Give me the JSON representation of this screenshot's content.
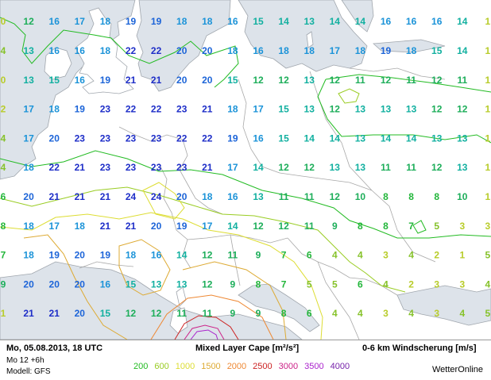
{
  "footer": {
    "datetime": "Mo, 05.08.2013, 18 UTC",
    "run": "Mo 12 +6h",
    "model": "Modell: GFS",
    "cape_title": "Mixed Layer Cape [m²/s²]",
    "shear_title": "0-6 km Windscherung [m/s]",
    "brand": "WetterOnline",
    "legend": [
      {
        "label": "200",
        "color": "#22bb22"
      },
      {
        "label": "600",
        "color": "#99cc22"
      },
      {
        "label": "1000",
        "color": "#dddd33"
      },
      {
        "label": "1500",
        "color": "#ddaa33"
      },
      {
        "label": "2000",
        "color": "#ee8833"
      },
      {
        "label": "2500",
        "color": "#cc2222"
      },
      {
        "label": "3000",
        "color": "#cc2288"
      },
      {
        "label": "3500",
        "color": "#aa22cc"
      },
      {
        "label": "4000",
        "color": "#7722aa"
      }
    ]
  },
  "map": {
    "value_colors": [
      {
        "min": 21,
        "color": "#1e2ec8"
      },
      {
        "min": 19,
        "color": "#1c64d8"
      },
      {
        "min": 16,
        "color": "#1b93d8"
      },
      {
        "min": 13,
        "color": "#12b0a0"
      },
      {
        "min": 9,
        "color": "#1dae5a"
      },
      {
        "min": 6,
        "color": "#22b63a"
      },
      {
        "min": 4,
        "color": "#86c22a"
      },
      {
        "min": 0,
        "color": "#b8cc2a"
      }
    ],
    "columns": [
      "0",
      "12",
      "16",
      "17",
      "18",
      "19",
      "19",
      "18",
      "18",
      "16",
      "15",
      "14",
      "13",
      "14",
      "14",
      "16",
      "16",
      "16",
      "14",
      "1"
    ],
    "rows": [
      [
        "0",
        "12",
        "16",
        "17",
        "18",
        "19",
        "19",
        "18",
        "18",
        "16",
        "15",
        "14",
        "13",
        "14",
        "14",
        "16",
        "16",
        "16",
        "14",
        "1"
      ],
      [
        "4",
        "13",
        "16",
        "16",
        "18",
        "22",
        "22",
        "20",
        "20",
        "18",
        "16",
        "18",
        "18",
        "17",
        "18",
        "19",
        "18",
        "15",
        "14",
        "1"
      ],
      [
        "0",
        "13",
        "15",
        "16",
        "19",
        "21",
        "21",
        "20",
        "20",
        "15",
        "12",
        "12",
        "13",
        "12",
        "11",
        "12",
        "11",
        "12",
        "11",
        "1"
      ],
      [
        "2",
        "17",
        "18",
        "19",
        "23",
        "22",
        "22",
        "23",
        "21",
        "18",
        "17",
        "15",
        "13",
        "12",
        "13",
        "13",
        "13",
        "12",
        "12",
        "1"
      ],
      [
        "4",
        "17",
        "20",
        "23",
        "23",
        "23",
        "23",
        "22",
        "22",
        "19",
        "16",
        "15",
        "14",
        "14",
        "13",
        "14",
        "14",
        "13",
        "13",
        "1"
      ],
      [
        "4",
        "18",
        "22",
        "21",
        "23",
        "23",
        "23",
        "23",
        "21",
        "17",
        "14",
        "12",
        "12",
        "13",
        "13",
        "11",
        "11",
        "12",
        "13",
        "1"
      ],
      [
        "6",
        "20",
        "21",
        "21",
        "21",
        "24",
        "24",
        "20",
        "18",
        "16",
        "13",
        "11",
        "11",
        "12",
        "10",
        "8",
        "8",
        "8",
        "10",
        "1"
      ],
      [
        "8",
        "18",
        "17",
        "18",
        "21",
        "21",
        "20",
        "19",
        "17",
        "14",
        "12",
        "12",
        "11",
        "9",
        "8",
        "8",
        "7",
        "5",
        "3",
        "3"
      ],
      [
        "7",
        "18",
        "19",
        "20",
        "19",
        "18",
        "16",
        "14",
        "12",
        "11",
        "9",
        "7",
        "6",
        "4",
        "4",
        "3",
        "4",
        "2",
        "1",
        "5"
      ],
      [
        "9",
        "20",
        "20",
        "20",
        "16",
        "15",
        "13",
        "13",
        "12",
        "9",
        "8",
        "7",
        "5",
        "5",
        "6",
        "4",
        "2",
        "3",
        "3",
        "4"
      ],
      [
        "1",
        "21",
        "21",
        "20",
        "15",
        "12",
        "12",
        "11",
        "11",
        "9",
        "9",
        "8",
        "6",
        "4",
        "4",
        "3",
        "4",
        "3",
        "4",
        "5"
      ]
    ]
  }
}
